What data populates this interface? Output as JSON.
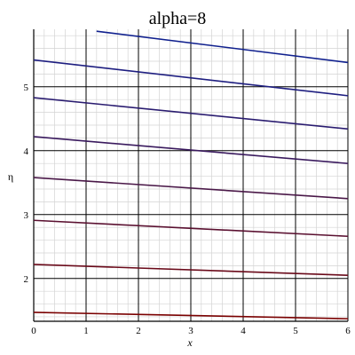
{
  "chart_data": {
    "type": "line",
    "title": "alpha=8",
    "xlabel": "x",
    "ylabel": "η",
    "xlim": [
      0,
      6
    ],
    "ylim": [
      1.33,
      5.9
    ],
    "x_ticks": [
      "0",
      "1",
      "2",
      "3",
      "4",
      "5",
      "6"
    ],
    "y_ticks": [
      "2",
      "3",
      "4",
      "5"
    ],
    "grid": true,
    "series": [
      {
        "x": [
          0,
          6
        ],
        "y": [
          1.47,
          1.37
        ],
        "color": "#7a0000"
      },
      {
        "x": [
          0,
          6
        ],
        "y": [
          2.22,
          2.05
        ],
        "color": "#6a0a1a"
      },
      {
        "x": [
          0,
          6
        ],
        "y": [
          2.91,
          2.66
        ],
        "color": "#5a1030"
      },
      {
        "x": [
          0,
          6
        ],
        "y": [
          3.58,
          3.25
        ],
        "color": "#4a1848"
      },
      {
        "x": [
          0,
          6
        ],
        "y": [
          4.22,
          3.8
        ],
        "color": "#3a1a5e"
      },
      {
        "x": [
          0,
          6
        ],
        "y": [
          4.83,
          4.34
        ],
        "color": "#2a1c70"
      },
      {
        "x": [
          0,
          6
        ],
        "y": [
          5.42,
          4.86
        ],
        "color": "#1e1e80"
      },
      {
        "x": [
          1.2,
          6
        ],
        "y": [
          5.87,
          5.38
        ],
        "color": "#10208e"
      }
    ]
  }
}
